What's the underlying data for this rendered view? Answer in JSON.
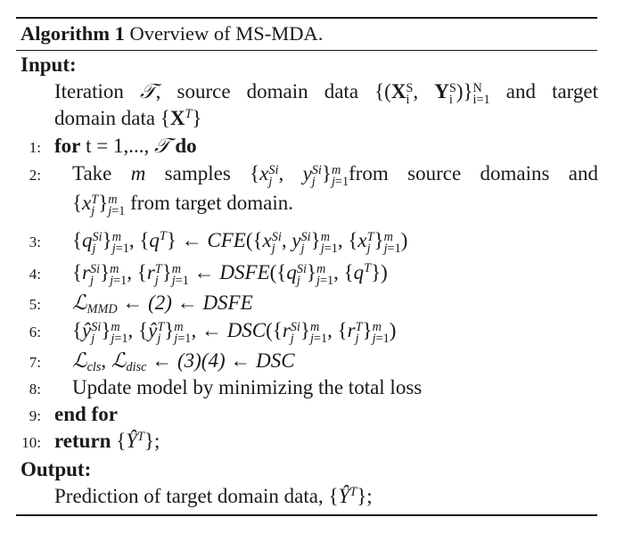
{
  "caption": {
    "label": "Algorithm 1",
    "text": " Overview of MS-MDA."
  },
  "input": {
    "label": "Input:"
  },
  "output": {
    "label": "Output:",
    "text": "Prediction of target domain data, "
  },
  "lines": {
    "l1": {
      "num": "1:",
      "kw": "for",
      "t": " t = 1,..., ",
      "do": "do"
    },
    "l2": {
      "num": "2:",
      "a": "Take ",
      "b": " samples ",
      "c": "from source domains and",
      "d": " from target domain."
    },
    "l3": {
      "num": "3:"
    },
    "l4": {
      "num": "4:"
    },
    "l5": {
      "num": "5:",
      "t": " ← (2) ← DSFE"
    },
    "l6": {
      "num": "6:"
    },
    "l7": {
      "num": "7:",
      "t": " ← (3)(4) ← DSC"
    },
    "l8": {
      "num": "8:",
      "t": "Update model by minimizing the total loss"
    },
    "l9": {
      "num": "9:",
      "kw": "end for"
    },
    "l10": {
      "num": "10:",
      "kw": "return"
    }
  },
  "input_text": {
    "a": "Iteration ",
    "b": ", source domain data ",
    "c": " and target",
    "d": "domain data "
  }
}
